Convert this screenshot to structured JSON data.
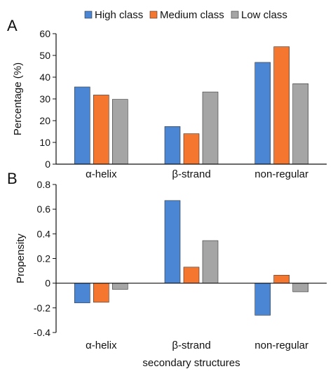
{
  "chart_data": [
    {
      "panel_label": "A",
      "type": "bar",
      "categories": [
        "α-helix",
        "β-strand",
        "non-regular"
      ],
      "series": [
        {
          "name": "High class",
          "values": [
            35.5,
            17.3,
            46.8
          ]
        },
        {
          "name": "Medium class",
          "values": [
            31.8,
            14.0,
            54.0
          ]
        },
        {
          "name": "Low class",
          "values": [
            29.8,
            33.2,
            37.0
          ]
        }
      ],
      "ylabel": "Percentage (%)",
      "xlabel": "",
      "ylim": [
        0,
        60
      ],
      "yticks": [
        "0",
        "10",
        "20",
        "30",
        "40",
        "50",
        "60"
      ],
      "grid": false,
      "legend": "top"
    },
    {
      "panel_label": "B",
      "type": "bar",
      "categories": [
        "α-helix",
        "β-strand",
        "non-regular"
      ],
      "series": [
        {
          "name": "High class",
          "values": [
            -0.16,
            0.67,
            -0.26
          ]
        },
        {
          "name": "Medium class",
          "values": [
            -0.155,
            0.13,
            0.065
          ]
        },
        {
          "name": "Low class",
          "values": [
            -0.05,
            0.345,
            -0.07
          ]
        }
      ],
      "ylabel": "Propensity",
      "xlabel": "secondary structures",
      "ylim": [
        -0.4,
        0.8
      ],
      "yticks": [
        "-0.4",
        "-0.2",
        "0",
        "0.2",
        "0.4",
        "0.6",
        "0.8"
      ],
      "grid": false,
      "legend": "none"
    }
  ],
  "colors": {
    "High class": "#4a86d4",
    "Medium class": "#f5762e",
    "Low class": "#a5a5a5",
    "bar_edge": "#333333",
    "axis": "#111111"
  }
}
